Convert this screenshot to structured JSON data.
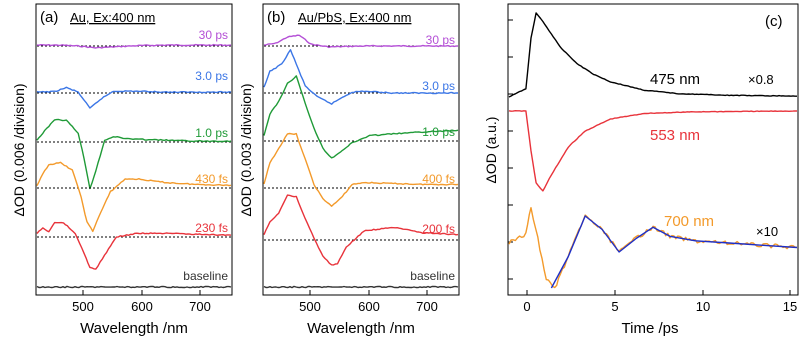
{
  "colors": {
    "c30ps": "#b44fd6",
    "c3ps": "#3b76e6",
    "c1ps": "#1f9a37",
    "c430fs": "#f39a2b",
    "c230fs": "#e8333b",
    "baseline": "#333333",
    "k475": "#000000",
    "k553": "#e8333b",
    "k700": "#f39a2b",
    "kfit": "#1e2fc7"
  },
  "chart_data": [
    {
      "type": "line",
      "panel": "(a)",
      "title": "Au, Ex:400 nm",
      "xlabel": "Wavelength /nm",
      "ylabel": "ΔOD (0.006 /division)",
      "xlim": [
        430,
        760
      ],
      "xticks": [
        500,
        600,
        700
      ],
      "series": [
        {
          "name": "30 ps",
          "color_key": "c30ps",
          "x": [
            430,
            470,
            500,
            530,
            560,
            600,
            650,
            700,
            760
          ],
          "y": [
            0.05,
            0.05,
            0.0,
            -0.1,
            -0.05,
            0.02,
            0.05,
            0.05,
            0.05
          ]
        },
        {
          "name": "3.0 ps",
          "color_key": "c3ps",
          "x": [
            430,
            460,
            480,
            500,
            520,
            540,
            560,
            600,
            650,
            700,
            760
          ],
          "y": [
            0.05,
            0.08,
            0.3,
            0.05,
            -0.85,
            -0.3,
            0.1,
            0.1,
            0.05,
            0.05,
            0.05
          ]
        },
        {
          "name": "1.0 ps",
          "color_key": "c1ps",
          "x": [
            430,
            440,
            460,
            480,
            500,
            510,
            520,
            530,
            545,
            560,
            580,
            600,
            650,
            700,
            760
          ],
          "y": [
            0.1,
            0.5,
            1.25,
            1.2,
            0.5,
            -0.9,
            -2.6,
            -1.6,
            0.1,
            0.3,
            0.2,
            0.15,
            0.1,
            0.05,
            0.05
          ]
        },
        {
          "name": "430 fs",
          "color_key": "c430fs",
          "x": [
            430,
            440,
            450,
            470,
            490,
            505,
            515,
            525,
            535,
            555,
            580,
            600,
            650,
            700,
            760
          ],
          "y": [
            0.1,
            0.8,
            1.3,
            1.4,
            1.0,
            -0.5,
            -1.9,
            -2.4,
            -1.6,
            -0.2,
            0.5,
            0.5,
            0.3,
            0.2,
            0.15
          ]
        },
        {
          "name": "230 fs",
          "color_key": "c230fs",
          "x": [
            430,
            440,
            450,
            460,
            475,
            495,
            510,
            520,
            530,
            545,
            565,
            600,
            650,
            700,
            760
          ],
          "y": [
            0.2,
            0.5,
            0.3,
            0.8,
            0.8,
            0.2,
            -0.9,
            -1.7,
            -1.8,
            -1.0,
            0.0,
            0.2,
            0.2,
            0.15,
            0.1
          ]
        },
        {
          "name": "baseline",
          "color_key": "baseline",
          "x": [
            430,
            760
          ],
          "y": [
            0,
            0
          ]
        }
      ]
    },
    {
      "type": "line",
      "panel": "(b)",
      "title": "Au/PbS, Ex:400 nm",
      "xlabel": "Wavelength /nm",
      "ylabel": "ΔOD (0.003 /division)",
      "xlim": [
        430,
        760
      ],
      "xticks": [
        500,
        600,
        700
      ],
      "series": [
        {
          "name": "30 ps",
          "color_key": "c30ps",
          "x": [
            430,
            450,
            470,
            490,
            510,
            540,
            600,
            650,
            700,
            760
          ],
          "y": [
            0.05,
            0.15,
            0.5,
            0.6,
            0.1,
            -0.05,
            0.0,
            0.0,
            0.0,
            0.0
          ]
        },
        {
          "name": "3.0 ps",
          "color_key": "c3ps",
          "x": [
            430,
            440,
            460,
            475,
            485,
            500,
            520,
            545,
            560,
            580,
            600,
            650,
            700,
            760
          ],
          "y": [
            0.3,
            1.2,
            1.6,
            2.4,
            1.6,
            0.4,
            -0.2,
            -0.6,
            -0.3,
            0.05,
            0.1,
            0.0,
            0.0,
            0.0
          ]
        },
        {
          "name": "1.0 ps",
          "color_key": "c1ps",
          "x": [
            430,
            440,
            455,
            470,
            485,
            500,
            515,
            530,
            545,
            560,
            580,
            610,
            650,
            700,
            760
          ],
          "y": [
            0.3,
            1.5,
            2.2,
            3.2,
            3.6,
            2.1,
            0.7,
            -0.4,
            -0.95,
            -0.6,
            -0.1,
            0.3,
            0.4,
            0.5,
            0.6
          ]
        },
        {
          "name": "400 fs",
          "color_key": "c400fs",
          "x": [
            430,
            440,
            455,
            470,
            485,
            500,
            515,
            530,
            545,
            560,
            580,
            600,
            650,
            700,
            760
          ],
          "y": [
            0.2,
            1.4,
            2.2,
            3.0,
            3.0,
            1.6,
            0.2,
            -0.6,
            -1.0,
            -0.6,
            0.2,
            0.3,
            0.25,
            0.2,
            0.2
          ]
        },
        {
          "name": "200 fs",
          "color_key": "c230fs",
          "x": [
            430,
            440,
            455,
            470,
            485,
            500,
            515,
            530,
            545,
            555,
            570,
            600,
            650,
            700,
            760
          ],
          "y": [
            0.3,
            1.0,
            1.5,
            2.5,
            2.4,
            1.2,
            0.1,
            -0.9,
            -1.4,
            -1.3,
            -0.4,
            0.5,
            0.7,
            0.4,
            0.3
          ]
        },
        {
          "name": "baseline",
          "color_key": "baseline",
          "x": [
            430,
            760
          ],
          "y": [
            0,
            0
          ]
        }
      ]
    },
    {
      "type": "line",
      "panel": "(c)",
      "xlabel": "Time /ps",
      "ylabel": "ΔOD (a.u.)",
      "xlim": [
        -1,
        16
      ],
      "xticks": [
        0,
        5,
        10,
        15
      ],
      "series": [
        {
          "name": "475 nm",
          "scale_label": "×0.8",
          "color_key": "k475",
          "x": [
            -1,
            0,
            0.3,
            0.6,
            1.0,
            2,
            3,
            4,
            5,
            7,
            9,
            12,
            16
          ],
          "y": [
            0,
            0.1,
            0.7,
            1.0,
            0.9,
            0.6,
            0.4,
            0.27,
            0.18,
            0.08,
            0.04,
            0.02,
            0.01
          ]
        },
        {
          "name": "553 nm",
          "color_key": "k553",
          "x": [
            -1,
            0,
            0.3,
            0.6,
            1.0,
            1.5,
            2.5,
            3.5,
            5,
            7,
            10,
            16
          ],
          "y": [
            0,
            0,
            -0.5,
            -0.9,
            -1.0,
            -0.8,
            -0.45,
            -0.25,
            -0.1,
            -0.03,
            -0.01,
            0
          ]
        },
        {
          "name": "700 nm",
          "scale_label": "×10",
          "color_key": "k700",
          "x": [
            -1,
            0,
            0.3,
            0.7,
            1.2,
            1.7,
            2.5,
            3.5,
            4.5,
            5.5,
            6.5,
            7.5,
            8.5,
            10,
            12,
            14,
            16
          ],
          "y": [
            0,
            0.2,
            0.8,
            0.1,
            -0.8,
            -1.0,
            -0.3,
            0.6,
            0.3,
            -0.2,
            0.1,
            0.35,
            0.15,
            0.05,
            0.0,
            -0.05,
            -0.1
          ]
        },
        {
          "name": "fit",
          "color_key": "kfit",
          "x": [
            1.5,
            2.5,
            3.5,
            4.5,
            5.5,
            6.5,
            7.5,
            8.5,
            10,
            12,
            14,
            16
          ],
          "y": [
            -1.0,
            -0.3,
            0.6,
            0.3,
            -0.2,
            0.1,
            0.35,
            0.15,
            0.05,
            0.0,
            -0.05,
            -0.1
          ]
        }
      ]
    }
  ],
  "panel_a": {
    "tag": "(a)",
    "title": "Au, Ex:400 nm",
    "xlabel": "Wavelength /nm",
    "ylabel": "ΔOD (0.006 /division)",
    "ticks": [
      "500",
      "600",
      "700"
    ],
    "labels": {
      "l30": "30 ps",
      "l3": "3.0 ps",
      "l1": "1.0 ps",
      "l430": "430 fs",
      "l230": "230 fs",
      "base": "baseline"
    }
  },
  "panel_b": {
    "tag": "(b)",
    "title": "Au/PbS, Ex:400 nm",
    "xlabel": "Wavelength /nm",
    "ylabel": "ΔOD (0.003 /division)",
    "ticks": [
      "500",
      "600",
      "700"
    ],
    "labels": {
      "l30": "30 ps",
      "l3": "3.0 ps",
      "l1": "1.0 ps",
      "l400": "400 fs",
      "l200": "200 fs",
      "base": "baseline"
    }
  },
  "panel_c": {
    "tag": "(c)",
    "xlabel": "Time /ps",
    "ylabel": "ΔOD (a.u.)",
    "ticks": [
      "0",
      "5",
      "10",
      "15"
    ],
    "labels": {
      "k475": "475 nm",
      "k553": "553 nm",
      "k700": "700 nm",
      "s08": "×0.8",
      "s10": "×10"
    }
  }
}
